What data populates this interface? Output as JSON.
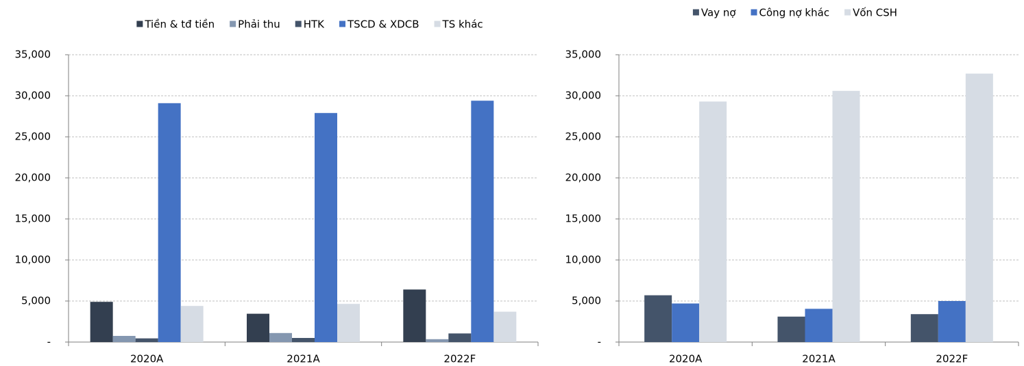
{
  "chart_data": [
    {
      "type": "bar",
      "categories": [
        "2020A",
        "2021A",
        "2022F"
      ],
      "series": [
        {
          "name": "Tiền & tđ tiền",
          "color": "#333f50",
          "values": [
            4900,
            3450,
            6400
          ]
        },
        {
          "name": "Phải thu",
          "color": "#8497b0",
          "values": [
            750,
            1100,
            350
          ]
        },
        {
          "name": "HTK",
          "color": "#44546a",
          "values": [
            450,
            500,
            1050
          ]
        },
        {
          "name": "TSCD & XDCB",
          "color": "#4472c4",
          "values": [
            29100,
            27900,
            29400
          ]
        },
        {
          "name": "TS khác",
          "color": "#d6dce4",
          "values": [
            4400,
            4650,
            3700
          ]
        }
      ],
      "ylim": [
        0,
        35000
      ],
      "yticks": [
        {
          "value": 0,
          "label": "-"
        },
        {
          "value": 5000,
          "label": "5,000"
        },
        {
          "value": 10000,
          "label": "10,000"
        },
        {
          "value": 15000,
          "label": "15,000"
        },
        {
          "value": 20000,
          "label": "20,000"
        },
        {
          "value": 25000,
          "label": "25,000"
        },
        {
          "value": 30000,
          "label": "30,000"
        },
        {
          "value": 35000,
          "label": "35,000"
        }
      ],
      "grid": true
    },
    {
      "type": "bar",
      "categories": [
        "2020A",
        "2021A",
        "2022F"
      ],
      "series": [
        {
          "name": "Vay nợ",
          "color": "#44546a",
          "values": [
            5700,
            3100,
            3400
          ]
        },
        {
          "name": "Công nợ khác",
          "color": "#4472c4",
          "values": [
            4700,
            4050,
            5000
          ]
        },
        {
          "name": "Vốn CSH",
          "color": "#d6dce4",
          "values": [
            29300,
            30600,
            32700
          ]
        }
      ],
      "ylim": [
        0,
        35000
      ],
      "yticks": [
        {
          "value": 0,
          "label": "-"
        },
        {
          "value": 5000,
          "label": "5,000"
        },
        {
          "value": 10000,
          "label": "10,000"
        },
        {
          "value": 15000,
          "label": "15,000"
        },
        {
          "value": 20000,
          "label": "20,000"
        },
        {
          "value": 25000,
          "label": "25,000"
        },
        {
          "value": 30000,
          "label": "30,000"
        },
        {
          "value": 35000,
          "label": "35,000"
        }
      ],
      "grid": true
    }
  ]
}
